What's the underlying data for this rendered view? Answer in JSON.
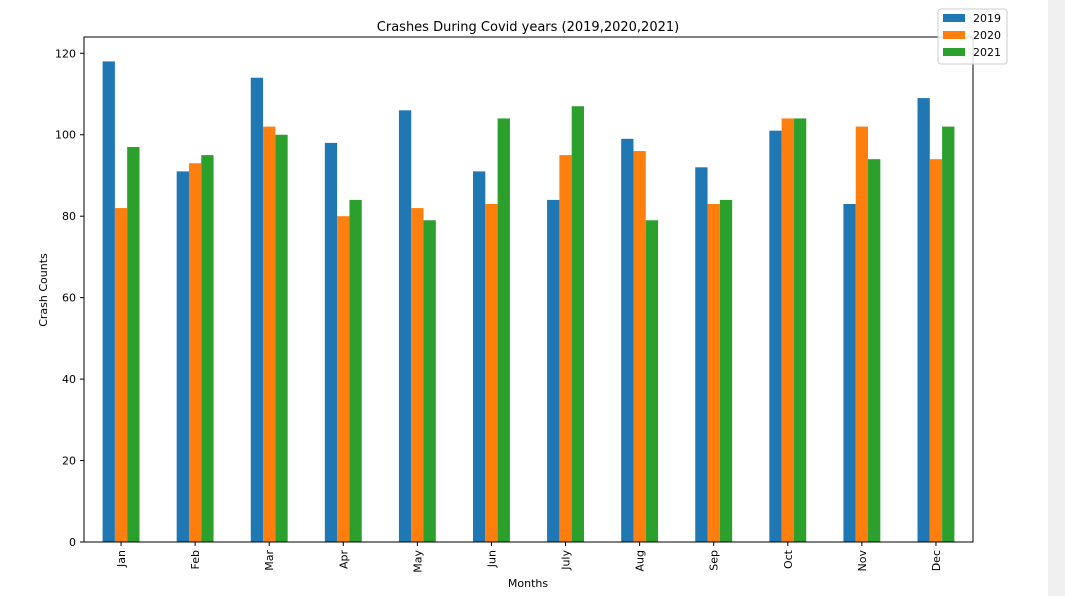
{
  "chart_data": {
    "type": "bar",
    "title": "Crashes During Covid years (2019,2020,2021)",
    "xlabel": "Months",
    "ylabel": "Crash Counts",
    "categories": [
      "Jan",
      "Feb",
      "Mar",
      "Apr",
      "May",
      "Jun",
      "July",
      "Aug",
      "Sep",
      "Oct",
      "Nov",
      "Dec"
    ],
    "series": [
      {
        "name": "2019",
        "color": "#1f77b4",
        "values": [
          118,
          91,
          114,
          98,
          106,
          91,
          84,
          99,
          92,
          101,
          83,
          109
        ]
      },
      {
        "name": "2020",
        "color": "#ff7f0e",
        "values": [
          82,
          93,
          102,
          80,
          82,
          83,
          95,
          96,
          83,
          104,
          102,
          94
        ]
      },
      {
        "name": "2021",
        "color": "#2ca02c",
        "values": [
          97,
          95,
          100,
          84,
          79,
          104,
          107,
          79,
          84,
          104,
          94,
          102
        ]
      }
    ],
    "ylim": [
      0,
      124
    ],
    "yticks": [
      0,
      20,
      40,
      60,
      80,
      100,
      120
    ],
    "legend_position": "top-right",
    "grid": false
  }
}
